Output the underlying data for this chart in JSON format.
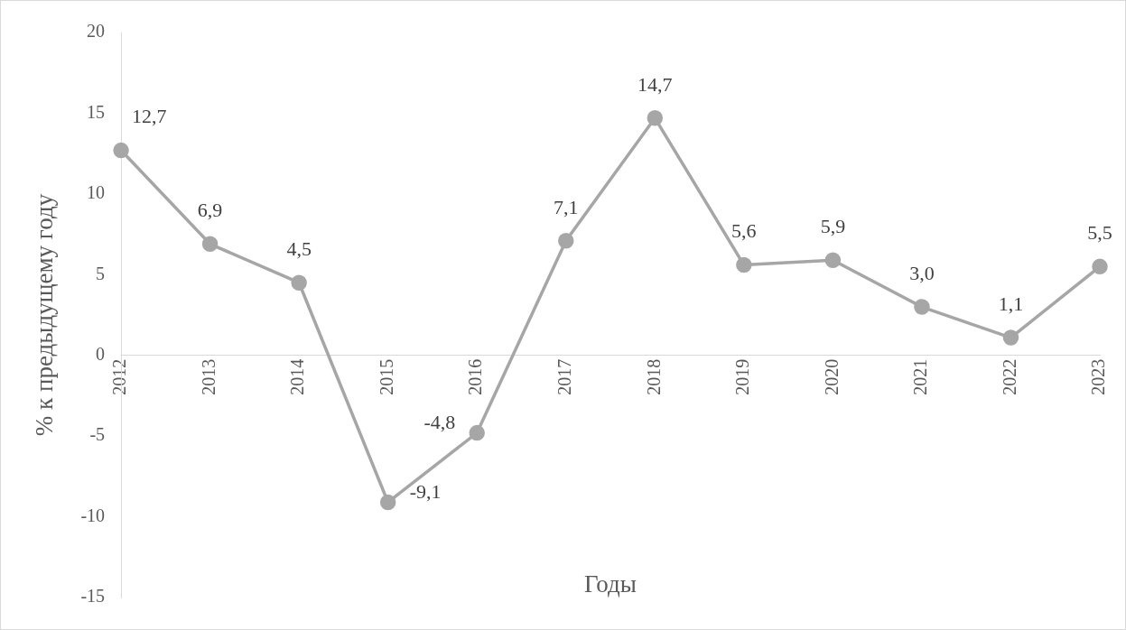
{
  "chart_data": {
    "type": "line",
    "xlabel": "Годы",
    "ylabel": "% к предыдущему году",
    "categories": [
      "2012",
      "2013",
      "2014",
      "2015",
      "2016",
      "2017",
      "2018",
      "2019",
      "2020",
      "2021",
      "2022",
      "2023"
    ],
    "values": [
      12.7,
      6.9,
      4.5,
      -9.1,
      -4.8,
      7.1,
      14.7,
      5.6,
      5.9,
      3.0,
      1.1,
      5.5
    ],
    "value_labels": [
      "12,7",
      "6,9",
      "4,5",
      "-9,1",
      "-4,8",
      "7,1",
      "14,7",
      "5,6",
      "5,9",
      "3,0",
      "1,1",
      "5,5"
    ],
    "color": "#a6a6a6",
    "marker": "circle",
    "line_style": "solid",
    "grid": false,
    "legend": false,
    "ylim": [
      -15,
      20
    ],
    "yticks": [
      -15,
      -10,
      -5,
      0,
      5,
      10,
      15,
      20
    ]
  }
}
